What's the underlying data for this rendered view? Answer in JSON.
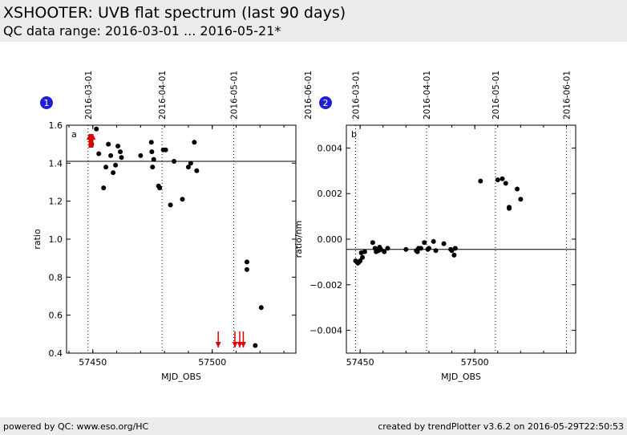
{
  "header": {
    "title": "XSHOOTER: UVB flat spectrum (last 90 days)",
    "subtitle": "QC data range: 2016-03-01 ... 2016-05-21*"
  },
  "footer": {
    "left": "powered by QC: www.eso.org/HC",
    "right": "created by trendPlotter v3.6.2 on 2016-05-29T22:50:53"
  },
  "chart_data": [
    {
      "type": "scatter",
      "panel_number": "1",
      "panel_letter": "a",
      "xlabel": "MJD_OBS",
      "ylabel": "ratio",
      "xlim": [
        57439,
        57535
      ],
      "ylim": [
        0.4,
        1.6
      ],
      "xticks": [
        57450,
        57500
      ],
      "yticks": [
        0.4,
        0.6,
        0.8,
        1.0,
        1.2,
        1.4,
        1.6
      ],
      "ytick_labels": [
        "0.4",
        "0.6",
        "0.8",
        "1.0",
        "1.2",
        "1.4",
        "1.6"
      ],
      "reference_line": 1.41,
      "date_markers": [
        {
          "label": "2016-03-01",
          "mjd": 57448
        },
        {
          "label": "2016-04-01",
          "mjd": 57479
        },
        {
          "label": "2016-05-01",
          "mjd": 57509
        },
        {
          "label": "2016-06-01",
          "mjd": 57540
        }
      ],
      "points": [
        [
          57449.5,
          1.5
        ],
        [
          57451.5,
          1.58
        ],
        [
          57452.5,
          1.45
        ],
        [
          57454.5,
          1.27
        ],
        [
          57455.5,
          1.38
        ],
        [
          57456.5,
          1.5
        ],
        [
          57457.5,
          1.44
        ],
        [
          57458.5,
          1.35
        ],
        [
          57459.5,
          1.39
        ],
        [
          57460.5,
          1.49
        ],
        [
          57461.5,
          1.46
        ],
        [
          57462,
          1.43
        ],
        [
          57470,
          1.44
        ],
        [
          57474.5,
          1.51
        ],
        [
          57474.7,
          1.46
        ],
        [
          57475,
          1.38
        ],
        [
          57475.5,
          1.42
        ],
        [
          57477.5,
          1.28
        ],
        [
          57478,
          1.27
        ],
        [
          57479.5,
          1.47
        ],
        [
          57480.5,
          1.47
        ],
        [
          57482.5,
          1.18
        ],
        [
          57484,
          1.41
        ],
        [
          57487.5,
          1.21
        ],
        [
          57490,
          1.38
        ],
        [
          57491,
          1.4
        ],
        [
          57492.5,
          1.51
        ],
        [
          57493.5,
          1.36
        ],
        [
          57514.5,
          0.88
        ],
        [
          57514.5,
          0.84
        ],
        [
          57518,
          0.44
        ],
        [
          57520.5,
          0.64
        ]
      ],
      "outlier_markers": [
        {
          "x": 57448.5,
          "direction": "up"
        },
        {
          "x": 57449,
          "direction": "up"
        },
        {
          "x": 57449.5,
          "direction": "up"
        },
        {
          "x": 57450,
          "direction": "up"
        },
        {
          "x": 57502.5,
          "direction": "down"
        },
        {
          "x": 57509.5,
          "direction": "down"
        },
        {
          "x": 57511.5,
          "direction": "down"
        },
        {
          "x": 57513,
          "direction": "down"
        }
      ],
      "marker_color": "#000000",
      "outlier_color": "#dd0000"
    },
    {
      "type": "scatter",
      "panel_number": "2",
      "panel_letter": "b",
      "xlabel": "MJD_OBS",
      "ylabel": "ratio/nm",
      "xlim": [
        57444,
        57544
      ],
      "ylim": [
        -0.005,
        0.005
      ],
      "xticks": [
        57450,
        57500
      ],
      "yticks": [
        -0.004,
        -0.002,
        0.0,
        0.002,
        0.004
      ],
      "ytick_labels": [
        "−0.004",
        "−0.002",
        "0.000",
        "0.002",
        "0.004"
      ],
      "reference_line": -0.00045,
      "date_markers": [
        {
          "label": "2016-03-01",
          "mjd": 57448
        },
        {
          "label": "2016-04-01",
          "mjd": 57479
        },
        {
          "label": "2016-05-01",
          "mjd": 57509
        },
        {
          "label": "2016-06-01",
          "mjd": 57540
        }
      ],
      "points": [
        [
          57448,
          -0.00095
        ],
        [
          57449,
          -0.00105
        ],
        [
          57449.5,
          -0.001
        ],
        [
          57450,
          -0.00095
        ],
        [
          57450.5,
          -0.0006
        ],
        [
          57451,
          -0.0008
        ],
        [
          57452,
          -0.00055
        ],
        [
          57455.5,
          -0.00015
        ],
        [
          57456.5,
          -0.0004
        ],
        [
          57457,
          -0.00055
        ],
        [
          57458,
          -0.0005
        ],
        [
          57458.5,
          -0.00035
        ],
        [
          57459,
          -0.00045
        ],
        [
          57460.5,
          -0.00055
        ],
        [
          57462,
          -0.0004
        ],
        [
          57470,
          -0.00045
        ],
        [
          57474.5,
          -0.0005
        ],
        [
          57475,
          -0.00055
        ],
        [
          57475.5,
          -0.0004
        ],
        [
          57476.5,
          -0.0004
        ],
        [
          57478,
          -0.00015
        ],
        [
          57479.5,
          -0.00045
        ],
        [
          57480,
          -0.0004
        ],
        [
          57482,
          -0.0001
        ],
        [
          57483,
          -0.0005
        ],
        [
          57486.5,
          -0.0002
        ],
        [
          57489.5,
          -0.00045
        ],
        [
          57490,
          -0.0005
        ],
        [
          57491,
          -0.0007
        ],
        [
          57491.5,
          -0.0004
        ],
        [
          57502.5,
          0.00255
        ],
        [
          57510,
          0.0026
        ],
        [
          57512,
          0.00265
        ],
        [
          57513.5,
          0.00245
        ],
        [
          57515,
          0.0014
        ],
        [
          57515,
          0.00135
        ],
        [
          57518.5,
          0.0022
        ],
        [
          57520,
          0.00175
        ]
      ],
      "marker_color": "#000000"
    }
  ]
}
